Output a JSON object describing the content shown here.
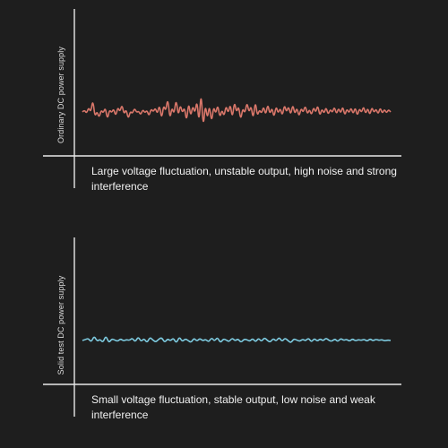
{
  "theme": {
    "background": "#1e1e1e",
    "axis_color": "#e8e8e8"
  },
  "chart_data": [
    {
      "type": "line",
      "ylabel": "Ordinary DC power supply",
      "caption": "Large voltage fluctuation, unstable output, high noise and strong interference",
      "series": [
        {
          "color": "#d9776a",
          "values": [
            0.0,
            0.25,
            -0.18,
            0.55,
            -0.05,
            1.5,
            -0.6,
            0.1,
            -0.7,
            0.25,
            -0.15,
            0.55,
            -0.9,
            0.3,
            -0.1,
            0.4,
            -0.5,
            0.6,
            0.0,
            0.9,
            -0.3,
            0.35,
            -0.85,
            0.1,
            -0.2,
            0.45,
            -0.05,
            0.1,
            -0.35,
            0.3,
            -0.1,
            0.2,
            -0.5,
            0.4,
            0.0,
            0.5,
            -0.25,
            0.9,
            -0.9,
            0.85,
            0.05,
            1.7,
            -0.9,
            0.6,
            -0.3,
            1.6,
            -0.5,
            0.9,
            -0.15,
            0.6,
            -1.2,
            1.2,
            -0.6,
            0.8,
            -0.2,
            1.45,
            -1.4,
            2.6,
            -2.0,
            1.0,
            -0.9,
            0.9,
            -1.3,
            0.7,
            -0.25,
            0.9,
            -0.7,
            0.3,
            -0.55,
            0.8,
            -0.2,
            1.0,
            -0.8,
            1.3,
            -0.1,
            0.75,
            -1.0,
            0.5,
            -0.2,
            1.2,
            -0.1,
            0.8,
            -0.9,
            1.35,
            -0.5,
            0.3,
            -0.2,
            0.7,
            -0.4,
            1.0,
            -0.3,
            0.55,
            -0.7,
            0.75,
            -0.2,
            0.5,
            -0.5,
            0.9,
            -0.05,
            0.7,
            -0.4,
            0.95,
            -0.3,
            0.55,
            -0.6,
            0.5,
            -0.1,
            0.8,
            -0.3,
            0.35,
            -0.4,
            0.6,
            -0.1,
            0.85,
            -0.5,
            0.4,
            -0.2,
            0.6,
            -0.35,
            0.35,
            -0.1,
            0.65,
            -0.3,
            0.5,
            -0.2,
            0.7,
            -0.45,
            0.4,
            -0.15,
            0.55,
            -0.3,
            0.6,
            -0.5,
            0.45,
            -0.1,
            0.7,
            -0.25,
            0.5,
            -0.4,
            0.6,
            -0.1,
            0.4,
            -0.3,
            0.55,
            -0.2,
            0.35,
            -0.15,
            0.3,
            0.0
          ]
        }
      ]
    },
    {
      "type": "line",
      "ylabel": "Solid test DC power supply",
      "caption": "Small voltage fluctuation, stable output, low noise and weak interference",
      "series": [
        {
          "color": "#7ecbe0",
          "values": [
            0.0,
            0.1,
            0.25,
            -0.2,
            0.55,
            -0.1,
            0.15,
            -0.25,
            0.6,
            -0.3,
            0.2,
            0.05,
            -0.1,
            0.2,
            -0.05,
            0.1,
            0.0,
            0.3,
            -0.2,
            0.45,
            -0.15,
            0.25,
            -0.3,
            0.4,
            0.05,
            -0.2,
            0.15,
            0.35,
            -0.25,
            0.2,
            -0.05,
            0.3,
            -0.35,
            0.45,
            -0.15,
            0.2,
            0.0,
            -0.25,
            0.3,
            -0.1,
            0.25,
            -0.05,
            0.15,
            -0.2,
            0.35,
            -0.1,
            0.4,
            -0.3,
            0.2,
            0.05,
            -0.15,
            0.3,
            -0.05,
            0.2,
            -0.25,
            0.15,
            0.1,
            -0.1,
            0.25,
            -0.2,
            0.3,
            -0.15,
            0.35,
            0.0,
            -0.2,
            0.25,
            -0.1,
            0.4,
            -0.15,
            0.3,
            0.0,
            -0.3,
            0.2,
            0.05,
            -0.1,
            0.15,
            -0.05,
            0.3,
            -0.2,
            0.25,
            -0.1,
            0.2,
            -0.05,
            0.3,
            0.0,
            -0.1,
            0.2,
            -0.15,
            0.25,
            0.0,
            0.15,
            -0.1,
            0.2,
            -0.05,
            0.1,
            0.0,
            0.15,
            -0.1,
            0.2,
            -0.05,
            0.15,
            0.0,
            0.1,
            -0.05,
            0.05,
            0.0
          ]
        }
      ]
    }
  ]
}
